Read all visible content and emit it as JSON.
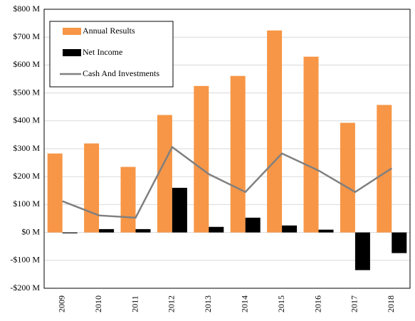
{
  "chart_data": {
    "type": "bar",
    "categories": [
      "2009",
      "2010",
      "2011",
      "2012",
      "2013",
      "2014",
      "2015",
      "2016",
      "2017",
      "2018"
    ],
    "series": [
      {
        "name": "Annual Results",
        "type": "bar",
        "color": "#f79646",
        "values": [
          283,
          319,
          235,
          421,
          525,
          561,
          724,
          630,
          393,
          457
        ]
      },
      {
        "name": "Net Income",
        "type": "bar",
        "color": "#000000",
        "values": [
          -3,
          12,
          12,
          160,
          20,
          53,
          25,
          10,
          -135,
          -74
        ]
      },
      {
        "name": "Cash And Investments",
        "type": "line",
        "color": "#808080",
        "values": [
          112,
          61,
          53,
          306,
          209,
          145,
          283,
          222,
          145,
          230
        ]
      }
    ],
    "ylim": [
      -200,
      800
    ],
    "yticks": [
      {
        "value": -200,
        "label": "-$200 M"
      },
      {
        "value": -100,
        "label": "-$100 M"
      },
      {
        "value": 0,
        "label": "$0 M"
      },
      {
        "value": 100,
        "label": "$100 M"
      },
      {
        "value": 200,
        "label": "$200 M"
      },
      {
        "value": 300,
        "label": "$300 M"
      },
      {
        "value": 400,
        "label": "$400 M"
      },
      {
        "value": 500,
        "label": "$500 M"
      },
      {
        "value": 600,
        "label": "$600 M"
      },
      {
        "value": 700,
        "label": "$700 M"
      },
      {
        "value": 800,
        "label": "$800 M"
      }
    ],
    "grid": true,
    "legend": "upper left"
  }
}
